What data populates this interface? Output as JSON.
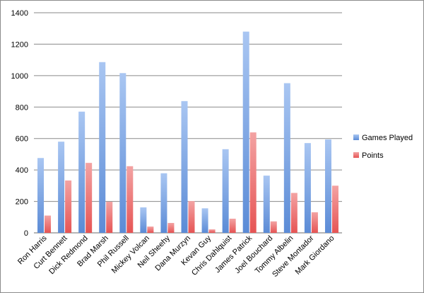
{
  "chart_data": {
    "type": "bar",
    "categories": [
      "Ron Harris",
      "Curt Bennett",
      "Dick Redmond",
      "Brad Marsh",
      "Phil Russell",
      "Mickey Volcan",
      "Neil Sheehy",
      "Dana Murzyn",
      "Kevan Guy",
      "Chris Dahlquist",
      "James Patrick",
      "Joel Bouchard",
      "Tommy Albelin",
      "Steve Montador",
      "Mark Giordano"
    ],
    "series": [
      {
        "name": "Games Played",
        "values": [
          476,
          580,
          771,
          1086,
          1016,
          162,
          379,
          838,
          156,
          532,
          1280,
          364,
          952,
          571,
          594
        ],
        "color": "#5b8bd6"
      },
      {
        "name": "Points",
        "values": [
          110,
          333,
          445,
          198,
          424,
          40,
          63,
          202,
          22,
          90,
          639,
          73,
          254,
          131,
          300
        ],
        "color": "#e65454"
      }
    ],
    "title": "",
    "xlabel": "",
    "ylabel": "",
    "ylim": [
      0,
      1400
    ],
    "yticks": [
      0,
      200,
      400,
      600,
      800,
      1000,
      1200,
      1400
    ],
    "grid": true,
    "legend_position": "right"
  }
}
